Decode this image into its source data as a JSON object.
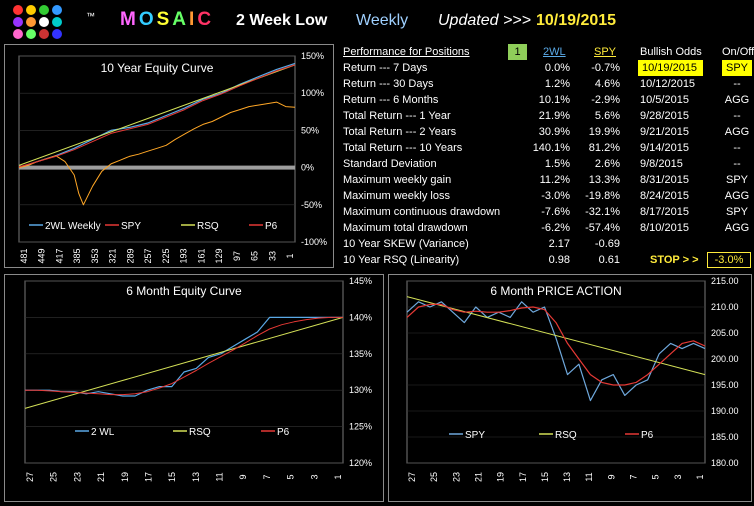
{
  "header": {
    "tm": "™",
    "logo_text": "MOSAIC",
    "logo_letters": [
      "M",
      "O",
      "S",
      "A",
      "I",
      "C"
    ],
    "logo_colors": [
      "#ff66ff",
      "#33ccff",
      "#ffff33",
      "#66ff66",
      "#ff9933",
      "#ff3366"
    ],
    "dot_colors": [
      "#ff3333",
      "#ffcc00",
      "#33cc33",
      "#3399ff",
      "#9933ff",
      "#ff9933",
      "#ffffff",
      "#00cccc",
      "#ff66cc",
      "#66ff66",
      "#cc3333",
      "#3333ff"
    ],
    "strategy": "2 Week Low",
    "period": "Weekly",
    "updated_label": "Updated >>>",
    "updated_date": "10/19/2015"
  },
  "table": {
    "headers": {
      "label": "Performance for Positions",
      "positions": "1",
      "col_2wl": "2WL",
      "col_spy": "SPY",
      "col_odds": "Bullish Odds",
      "col_onoff": "On/Off"
    },
    "rows": [
      {
        "label": "Return --- 7 Days",
        "v1": "0.0%",
        "v2": "-0.7%",
        "date": "10/19/2015",
        "sig": "SPY"
      },
      {
        "label": "Return --- 30 Days",
        "v1": "1.2%",
        "v2": "4.6%",
        "date": "10/12/2015",
        "sig": "--"
      },
      {
        "label": "Return --- 6 Months",
        "v1": "10.1%",
        "v2": "-2.9%",
        "date": "10/5/2015",
        "sig": "AGG"
      },
      {
        "label": "Total Return --- 1 Year",
        "v1": "21.9%",
        "v2": "5.6%",
        "date": "9/28/2015",
        "sig": "--"
      },
      {
        "label": "Total Return --- 2 Years",
        "v1": "30.9%",
        "v2": "19.9%",
        "date": "9/21/2015",
        "sig": "AGG"
      },
      {
        "label": "Total Return --- 10 Years",
        "v1": "140.1%",
        "v2": "81.2%",
        "date": "9/14/2015",
        "sig": "--"
      },
      {
        "label": "Standard Deviation",
        "v1": "1.5%",
        "v2": "2.6%",
        "date": "9/8/2015",
        "sig": "--"
      },
      {
        "label": "Maximum weekly gain",
        "v1": "11.2%",
        "v2": "13.3%",
        "date": "8/31/2015",
        "sig": "SPY"
      },
      {
        "label": "Maximum weekly loss",
        "v1": "-3.0%",
        "v2": "-19.8%",
        "date": "8/24/2015",
        "sig": "AGG"
      },
      {
        "label": "Maximum continuous drawdown",
        "v1": "-7.6%",
        "v2": "-32.1%",
        "date": "8/17/2015",
        "sig": "SPY"
      },
      {
        "label": "Maximum total drawdown",
        "v1": "-6.2%",
        "v2": "-57.4%",
        "date": "8/10/2015",
        "sig": "AGG"
      },
      {
        "label": "10 Year SKEW (Variance)",
        "v1": "2.17",
        "v2": "-0.69",
        "date": "",
        "sig": ""
      },
      {
        "label": "10 Year RSQ (Linearity)",
        "v1": "0.98",
        "v2": "0.61",
        "date": "",
        "sig": ""
      }
    ],
    "stop_label": "STOP > >",
    "stop_value": "-3.0%"
  },
  "colors": {
    "wl": "#5aa9e6",
    "spy_line": "#ffa726",
    "rsq": "#d4e157",
    "p6": "#e53935",
    "spy_blue": "#6fa8dc"
  },
  "chart_data": [
    {
      "type": "line",
      "title": "10 Year Equity Curve",
      "x_ticks": [
        "481",
        "449",
        "417",
        "385",
        "353",
        "321",
        "289",
        "257",
        "225",
        "193",
        "161",
        "129",
        "97",
        "65",
        "33",
        "1"
      ],
      "y_ticks": [
        "150%",
        "100%",
        "50%",
        "0%",
        "-50%",
        "-100%"
      ],
      "ylim": [
        -100,
        150
      ],
      "legend": [
        "2WL Weekly",
        "SPY",
        "RSQ",
        "P6"
      ],
      "series": [
        {
          "name": "2WL Weekly",
          "x": [
            481,
            449,
            417,
            385,
            353,
            321,
            289,
            257,
            225,
            193,
            161,
            129,
            97,
            65,
            33,
            1
          ],
          "values": [
            0,
            8,
            16,
            26,
            38,
            50,
            54,
            60,
            70,
            80,
            92,
            100,
            112,
            122,
            132,
            140
          ]
        },
        {
          "name": "SPY",
          "x": [
            481,
            465,
            449,
            433,
            417,
            401,
            385,
            377,
            369,
            353,
            337,
            321,
            305,
            289,
            273,
            257,
            241,
            225,
            209,
            193,
            177,
            161,
            145,
            129,
            113,
            97,
            81,
            65,
            49,
            33,
            17,
            1
          ],
          "values": [
            0,
            3,
            8,
            12,
            16,
            8,
            -10,
            -35,
            -50,
            -25,
            -5,
            5,
            10,
            15,
            18,
            22,
            26,
            30,
            38,
            45,
            52,
            58,
            62,
            68,
            74,
            78,
            82,
            84,
            86,
            88,
            82,
            81
          ]
        },
        {
          "name": "RSQ",
          "x": [
            481,
            1
          ],
          "values": [
            3,
            138
          ]
        },
        {
          "name": "P6",
          "x": [
            481,
            449,
            417,
            385,
            353,
            321,
            289,
            257,
            225,
            193,
            161,
            129,
            97,
            65,
            33,
            1
          ],
          "values": [
            1,
            8,
            15,
            24,
            35,
            46,
            52,
            58,
            68,
            78,
            90,
            99,
            110,
            120,
            130,
            138
          ]
        }
      ]
    },
    {
      "type": "line",
      "title": "6 Month Equity Curve",
      "x_ticks": [
        "27",
        "25",
        "23",
        "21",
        "19",
        "17",
        "15",
        "13",
        "11",
        "9",
        "7",
        "5",
        "3",
        "1"
      ],
      "y_ticks": [
        "145%",
        "140%",
        "135%",
        "130%",
        "125%",
        "120%"
      ],
      "ylim": [
        120,
        145
      ],
      "legend": [
        "2 WL",
        "RSQ",
        "P6"
      ],
      "series": [
        {
          "name": "2 WL",
          "x": [
            27,
            26,
            25,
            24,
            23,
            22,
            21,
            20,
            19,
            18,
            17,
            16,
            15,
            14,
            13,
            12,
            11,
            10,
            9,
            8,
            7,
            6,
            5,
            4,
            3,
            2,
            1
          ],
          "values": [
            130,
            130,
            130,
            129.8,
            129.8,
            129.5,
            129.8,
            129.5,
            129.2,
            129.2,
            130,
            130.5,
            130.5,
            132.5,
            133,
            134.5,
            135,
            136,
            137,
            138,
            140,
            140,
            140,
            140,
            140,
            140,
            140
          ]
        },
        {
          "name": "RSQ",
          "x": [
            27,
            1
          ],
          "values": [
            127.5,
            140
          ]
        },
        {
          "name": "P6",
          "x": [
            27,
            26,
            25,
            24,
            23,
            22,
            21,
            20,
            19,
            18,
            17,
            16,
            15,
            14,
            13,
            12,
            11,
            10,
            9,
            8,
            7,
            6,
            5,
            4,
            3,
            2,
            1
          ],
          "values": [
            130,
            130,
            129.9,
            129.8,
            129.7,
            129.6,
            129.5,
            129.4,
            129.4,
            129.5,
            129.8,
            130.3,
            130.9,
            131.8,
            132.7,
            133.7,
            134.6,
            135.5,
            136.5,
            137.5,
            138.4,
            139,
            139.4,
            139.7,
            139.9,
            140,
            140
          ]
        }
      ]
    },
    {
      "type": "line",
      "title": "6 Month PRICE ACTION",
      "x_ticks": [
        "27",
        "25",
        "23",
        "21",
        "19",
        "17",
        "15",
        "13",
        "11",
        "9",
        "7",
        "5",
        "3",
        "1"
      ],
      "y_ticks": [
        "215.00",
        "210.00",
        "205.00",
        "200.00",
        "195.00",
        "190.00",
        "185.00",
        "180.00"
      ],
      "ylim": [
        180,
        215
      ],
      "legend": [
        "SPY",
        "RSQ",
        "P6"
      ],
      "series": [
        {
          "name": "SPY",
          "x": [
            27,
            26,
            25,
            24,
            23,
            22,
            21,
            20,
            19,
            18,
            17,
            16,
            15,
            14,
            13,
            12,
            11,
            10,
            9,
            8,
            7,
            6,
            5,
            4,
            3,
            2,
            1
          ],
          "values": [
            209,
            211,
            210,
            211,
            209,
            207,
            210,
            208,
            209,
            208,
            211,
            209,
            210,
            204,
            197,
            199,
            192,
            196,
            197,
            193,
            195,
            196,
            201,
            203,
            202,
            203,
            202
          ]
        },
        {
          "name": "RSQ",
          "x": [
            27,
            1
          ],
          "values": [
            212,
            197
          ]
        },
        {
          "name": "P6",
          "x": [
            27,
            26,
            25,
            24,
            23,
            22,
            21,
            20,
            19,
            18,
            17,
            16,
            15,
            14,
            13,
            12,
            11,
            10,
            9,
            8,
            7,
            6,
            5,
            4,
            3,
            2,
            1
          ],
          "values": [
            208,
            210,
            210.5,
            210.5,
            209.5,
            209,
            209.2,
            209,
            209,
            209.3,
            209.8,
            210,
            209.5,
            207,
            203,
            200,
            197,
            195.5,
            195,
            195,
            195.5,
            197,
            199,
            201,
            203,
            203.5,
            202.5
          ]
        }
      ]
    }
  ]
}
